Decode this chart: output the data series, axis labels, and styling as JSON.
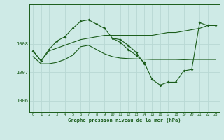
{
  "background_color": "#ceeae6",
  "grid_color": "#b8d8d4",
  "line_color": "#1a5c1a",
  "title": "Graphe pression niveau de la mer (hPa)",
  "xlim": [
    -0.5,
    23.5
  ],
  "ylim": [
    1005.6,
    1009.4
  ],
  "yticks": [
    1006,
    1007,
    1008
  ],
  "xticks": [
    0,
    1,
    2,
    3,
    4,
    5,
    6,
    7,
    8,
    9,
    10,
    11,
    12,
    13,
    14,
    15,
    16,
    17,
    18,
    19,
    20,
    21,
    22,
    23
  ],
  "line1_x": [
    0,
    1,
    2,
    3,
    4,
    5,
    6,
    7,
    8,
    9,
    10,
    11,
    12,
    13,
    14,
    15,
    16,
    17,
    18,
    19,
    20,
    21,
    22,
    23
  ],
  "line1_y": [
    1007.75,
    1007.4,
    1007.75,
    1007.85,
    1007.95,
    1008.05,
    1008.15,
    1008.2,
    1008.25,
    1008.3,
    1008.3,
    1008.3,
    1008.3,
    1008.3,
    1008.3,
    1008.3,
    1008.35,
    1008.4,
    1008.4,
    1008.45,
    1008.5,
    1008.55,
    1008.65,
    1008.65
  ],
  "line2_x": [
    0,
    1,
    2,
    3,
    4,
    5,
    6,
    7,
    8,
    9,
    10,
    11,
    12,
    13,
    14,
    15,
    16,
    17,
    18,
    19,
    20,
    21,
    22,
    23
  ],
  "line2_y": [
    1007.55,
    1007.3,
    1007.3,
    1007.35,
    1007.45,
    1007.6,
    1007.9,
    1007.95,
    1007.8,
    1007.65,
    1007.55,
    1007.5,
    1007.48,
    1007.47,
    1007.46,
    1007.45,
    1007.45,
    1007.45,
    1007.45,
    1007.44,
    1007.45,
    1007.45,
    1007.45,
    1007.45
  ],
  "line3_x": [
    0,
    1,
    2,
    3,
    4,
    5,
    6,
    7,
    8,
    9,
    10,
    11,
    12,
    13,
    14
  ],
  "line3_y": [
    1007.75,
    1007.4,
    1007.8,
    1008.1,
    1008.25,
    1008.55,
    1008.8,
    1008.85,
    1008.7,
    1008.55,
    1008.2,
    1008.15,
    1007.95,
    1007.7,
    1007.3
  ],
  "line4_x": [
    10,
    11,
    12,
    13,
    14,
    15,
    16,
    17,
    18,
    19,
    20,
    21,
    22,
    23
  ],
  "line4_y": [
    1008.2,
    1008.05,
    1007.8,
    1007.6,
    1007.35,
    1006.75,
    1006.55,
    1006.65,
    1006.65,
    1007.05,
    1007.1,
    1008.75,
    1008.65,
    1008.65
  ]
}
